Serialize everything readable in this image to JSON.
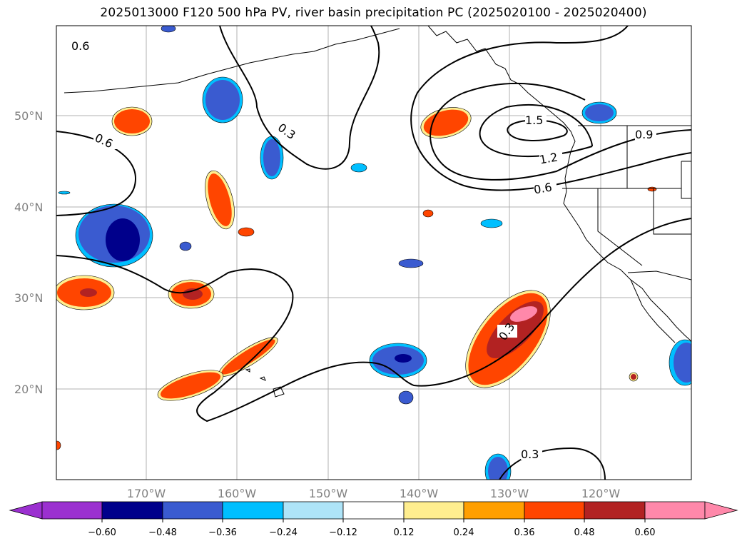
{
  "title": "2025013000 F120 500 hPa PV, river basin precipitation PC (2025020100 - 2025020400)",
  "colors": {
    "grid": "#b0b0b0",
    "coast": "#000000",
    "contour": "#000000",
    "n60": "#00008b",
    "n48": "#3a5bd0",
    "n36": "#00bfff",
    "n24": "#aee4f8",
    "p12": "#ffee8f",
    "p24": "#ff9f00",
    "p36": "#ff4500",
    "p48": "#b22222",
    "p60": "#ff88aa"
  },
  "map": {
    "lat_labels": [
      "50°N",
      "40°N",
      "30°N",
      "20°N"
    ],
    "lon_labels": [
      "170°W",
      "160°W",
      "150°W",
      "140°W",
      "130°W",
      "120°W"
    ],
    "contour_labels": [
      "0.6",
      "0.6",
      "0.3",
      "0.3",
      "0.3",
      "1.5",
      "1.2",
      "0.9",
      "0.6"
    ]
  },
  "colorbar": {
    "ticks": [
      "−0.60",
      "−0.48",
      "−0.36",
      "−0.24",
      "−0.12",
      "0.12",
      "0.24",
      "0.36",
      "0.48",
      "0.60"
    ],
    "bins": [
      "#9b30d0",
      "#00008b",
      "#3a5bd0",
      "#3a5bd0",
      "#00bfff",
      "#aee4f8",
      "#ffffff",
      "#ffee8f",
      "#ff9f00",
      "#ff4500",
      "#b22222",
      "#ff88aa"
    ]
  }
}
